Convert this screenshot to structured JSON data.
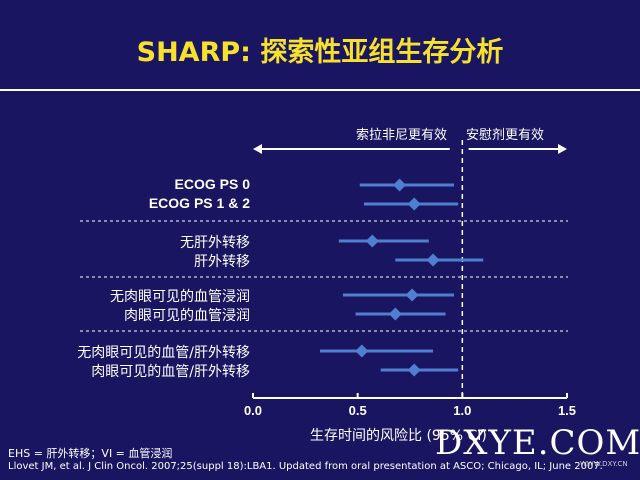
{
  "title": "SHARP: 探索性亚组生存分析",
  "direction": {
    "left": "索拉非尼更有效",
    "right": "安慰剂更有效"
  },
  "chart_data": {
    "type": "forest",
    "xlabel": "生存时间的风险比 (95% CI)",
    "xlim": [
      0.0,
      1.5
    ],
    "xticks": [
      "0.0",
      "0.5",
      "1.0",
      "1.5"
    ],
    "reference_line": 1.0,
    "groups": [
      {
        "rows": [
          {
            "label": "ECOG PS 0",
            "hr": 0.7,
            "lo": 0.51,
            "hi": 0.96,
            "bold": true
          },
          {
            "label": "ECOG PS 1 & 2",
            "hr": 0.77,
            "lo": 0.53,
            "hi": 0.98,
            "bold": true
          }
        ]
      },
      {
        "rows": [
          {
            "label": "无肝外转移",
            "hr": 0.57,
            "lo": 0.41,
            "hi": 0.84,
            "bold": false
          },
          {
            "label": "肝外转移",
            "hr": 0.86,
            "lo": 0.68,
            "hi": 1.1,
            "bold": false
          }
        ]
      },
      {
        "rows": [
          {
            "label": "无肉眼可见的血管浸润",
            "hr": 0.76,
            "lo": 0.43,
            "hi": 0.96,
            "bold": false
          },
          {
            "label": "肉眼可见的血管浸润",
            "hr": 0.68,
            "lo": 0.49,
            "hi": 0.92,
            "bold": false
          }
        ]
      },
      {
        "rows": [
          {
            "label": "无肉眼可见的血管/肝外转移",
            "hr": 0.52,
            "lo": 0.32,
            "hi": 0.86,
            "bold": false
          },
          {
            "label": "肉眼可见的血管/肝外转移",
            "hr": 0.77,
            "lo": 0.61,
            "hi": 0.98,
            "bold": false
          }
        ]
      }
    ]
  },
  "footnotes": {
    "abbrev": "EHS = 肝外转移；VI = 血管浸润",
    "citation": "Llovet JM, et al. J Clin Oncol. 2007;25(suppl 18):LBA1. Updated from oral presentation at ASCO; Chicago, IL; June 2007."
  },
  "watermark": {
    "main": "DXYE.COM",
    "small": "WWW.DXY.CN"
  },
  "colors": {
    "background": "#1a1560",
    "title": "#f6e12c",
    "marker": "#4f7fd0",
    "text": "#ffffff"
  }
}
